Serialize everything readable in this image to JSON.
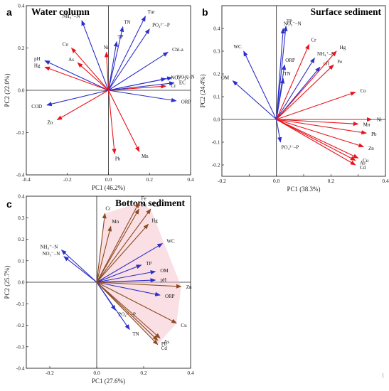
{
  "figure": {
    "stray_mark": "|"
  },
  "colors": {
    "red": "#e8141c",
    "blue": "#2b2fc9",
    "brown": "#8b4a1e",
    "axis": "#222222",
    "hull": "#f4b7c6"
  },
  "chart_data": [
    {
      "type": "biplot",
      "panel_label": "a",
      "title": "Water column",
      "xlabel": "PC1 (46.2%)",
      "ylabel": "PC2 (22.0%)",
      "xlim": [
        -0.4,
        0.4
      ],
      "ylim": [
        -0.4,
        0.4
      ],
      "xticks": [
        -0.4,
        -0.2,
        0.0,
        0.2,
        0.4
      ],
      "yticks": [
        -0.4,
        -0.2,
        0.0,
        0.2,
        0.4
      ],
      "xtick_labels": [
        "-0.4",
        "-0.2",
        "0.0",
        "0.2",
        "0.4"
      ],
      "ytick_labels": [
        "-0.4",
        "-0.2",
        "0.0",
        "0.2",
        "0.4"
      ],
      "vectors": [
        {
          "label": "NH₄⁺–N",
          "x": -0.13,
          "y": 0.33,
          "color": "blue"
        },
        {
          "label": "TN",
          "x": 0.07,
          "y": 0.3,
          "color": "blue"
        },
        {
          "label": "Tur",
          "x": 0.18,
          "y": 0.35,
          "color": "blue"
        },
        {
          "label": "PO₄³⁻–P",
          "x": 0.2,
          "y": 0.29,
          "color": "blue"
        },
        {
          "label": "TP",
          "x": 0.04,
          "y": 0.23,
          "color": "blue"
        },
        {
          "label": "Chl-a",
          "x": 0.29,
          "y": 0.18,
          "color": "blue"
        },
        {
          "label": "NO₃⁻–N",
          "x": 0.28,
          "y": 0.055,
          "color": "blue"
        },
        {
          "label": "NO₂⁻–N",
          "x": 0.31,
          "y": 0.06,
          "color": "blue"
        },
        {
          "label": "EC",
          "x": 0.32,
          "y": 0.035,
          "color": "blue"
        },
        {
          "label": "ORP",
          "x": 0.33,
          "y": -0.05,
          "color": "blue"
        },
        {
          "label": "COD",
          "x": -0.3,
          "y": -0.07,
          "color": "blue"
        },
        {
          "label": "pH",
          "x": -0.31,
          "y": 0.14,
          "color": "blue"
        },
        {
          "label": "Hg",
          "x": -0.31,
          "y": 0.11,
          "color": "red"
        },
        {
          "label": "Cu",
          "x": -0.18,
          "y": 0.2,
          "color": "red"
        },
        {
          "label": "As",
          "x": -0.15,
          "y": 0.13,
          "color": "red"
        },
        {
          "label": "Ni",
          "x": -0.01,
          "y": 0.18,
          "color": "red"
        },
        {
          "label": "Cr",
          "x": 0.28,
          "y": 0.02,
          "color": "red"
        },
        {
          "label": "Zn",
          "x": -0.25,
          "y": -0.14,
          "color": "red"
        },
        {
          "label": "Pb",
          "x": 0.03,
          "y": -0.3,
          "color": "red"
        },
        {
          "label": "Mn",
          "x": 0.15,
          "y": -0.29,
          "color": "red"
        }
      ]
    },
    {
      "type": "biplot",
      "panel_label": "b",
      "title": "Surface sediment",
      "xlabel": "PC1 (38.3%)",
      "ylabel": "PC2 (24.4%)",
      "xlim": [
        -0.2,
        0.4
      ],
      "ylim": [
        -0.25,
        0.5
      ],
      "xticks": [
        -0.2,
        -0.1,
        0.0,
        0.1,
        0.2,
        0.3,
        0.4
      ],
      "yticks": [
        -0.2,
        -0.1,
        0.0,
        0.1,
        0.2,
        0.3,
        0.4
      ],
      "xtick_labels": [
        "-0.2",
        "",
        "0.0",
        "",
        "0.2",
        "",
        "0.4"
      ],
      "ytick_labels": [
        "-0.2",
        "-0.1",
        "0.0",
        "0.1",
        "0.2",
        "0.3",
        "0.4"
      ],
      "vectors": [
        {
          "label": "NO₃⁻–N",
          "x": 0.025,
          "y": 0.4,
          "color": "blue"
        },
        {
          "label": "TP",
          "x": 0.035,
          "y": 0.41,
          "color": "blue"
        },
        {
          "label": "WC",
          "x": -0.12,
          "y": 0.3,
          "color": "blue"
        },
        {
          "label": "OM",
          "x": -0.16,
          "y": 0.17,
          "color": "blue"
        },
        {
          "label": "ORP",
          "x": 0.03,
          "y": 0.24,
          "color": "blue"
        },
        {
          "label": "TN",
          "x": 0.025,
          "y": 0.18,
          "color": "blue"
        },
        {
          "label": "pH",
          "x": 0.16,
          "y": 0.23,
          "color": "blue"
        },
        {
          "label": "NH₄⁺–N",
          "x": 0.14,
          "y": 0.27,
          "color": "blue"
        },
        {
          "label": "PO₄³⁻–P",
          "x": 0.015,
          "y": -0.1,
          "color": "blue"
        },
        {
          "label": "Cr",
          "x": 0.12,
          "y": 0.33,
          "color": "red"
        },
        {
          "label": "Hg",
          "x": 0.22,
          "y": 0.3,
          "color": "red"
        },
        {
          "label": "Fe",
          "x": 0.21,
          "y": 0.24,
          "color": "red"
        },
        {
          "label": "Co",
          "x": 0.29,
          "y": 0.12,
          "color": "red"
        },
        {
          "label": "Ni",
          "x": 0.35,
          "y": 0.0,
          "color": "red"
        },
        {
          "label": "Mn",
          "x": 0.3,
          "y": -0.02,
          "color": "red"
        },
        {
          "label": "Pb",
          "x": 0.33,
          "y": -0.06,
          "color": "red"
        },
        {
          "label": "Zn",
          "x": 0.32,
          "y": -0.12,
          "color": "red"
        },
        {
          "label": "Cu",
          "x": 0.3,
          "y": -0.17,
          "color": "red"
        },
        {
          "label": "As",
          "x": 0.29,
          "y": -0.18,
          "color": "red"
        },
        {
          "label": "Cd",
          "x": 0.29,
          "y": -0.2,
          "color": "red"
        }
      ]
    },
    {
      "type": "biplot",
      "panel_label": "c",
      "title": "Bottom sediment",
      "xlabel": "PC1 (27.6%)",
      "ylabel": "PC2 (25.7%)",
      "xlim": [
        -0.3,
        0.4
      ],
      "ylim": [
        -0.4,
        0.4
      ],
      "xticks": [
        -0.2,
        0.0,
        0.2,
        0.4
      ],
      "yticks": [
        -0.4,
        -0.3,
        -0.2,
        -0.1,
        0.0,
        0.1,
        0.2,
        0.3,
        0.4
      ],
      "xtick_labels": [
        "-0.2",
        "0.0",
        "0.2",
        "0.4"
      ],
      "ytick_labels": [
        "-0.4",
        "-0.3",
        "-0.2",
        "-0.1",
        "0.0",
        "0.1",
        "0.2",
        "0.3",
        "0.4"
      ],
      "vectors": [
        {
          "label": "Fe",
          "x": 0.18,
          "y": 0.37,
          "color": "brown"
        },
        {
          "label": "Ni",
          "x": 0.18,
          "y": 0.34,
          "color": "brown"
        },
        {
          "label": "Co",
          "x": 0.23,
          "y": 0.34,
          "color": "brown"
        },
        {
          "label": "Hg",
          "x": 0.22,
          "y": 0.27,
          "color": "brown"
        },
        {
          "label": "Cr",
          "x": 0.035,
          "y": 0.32,
          "color": "brown"
        },
        {
          "label": "Mn",
          "x": 0.06,
          "y": 0.26,
          "color": "brown"
        },
        {
          "label": "WC",
          "x": 0.28,
          "y": 0.18,
          "color": "blue"
        },
        {
          "label": "TP",
          "x": 0.19,
          "y": 0.08,
          "color": "blue"
        },
        {
          "label": "OM",
          "x": 0.25,
          "y": 0.05,
          "color": "blue"
        },
        {
          "label": "pH",
          "x": 0.25,
          "y": 0.01,
          "color": "blue"
        },
        {
          "label": "ORP",
          "x": 0.27,
          "y": -0.06,
          "color": "blue"
        },
        {
          "label": "NH₄⁺–N",
          "x": -0.15,
          "y": 0.15,
          "color": "blue"
        },
        {
          "label": "NO₃⁻–N",
          "x": -0.14,
          "y": 0.12,
          "color": "blue"
        },
        {
          "label": "PO₄³⁻–P",
          "x": 0.08,
          "y": -0.13,
          "color": "blue"
        },
        {
          "label": "TN",
          "x": 0.14,
          "y": -0.22,
          "color": "blue"
        },
        {
          "label": "Zn",
          "x": 0.36,
          "y": -0.02,
          "color": "brown"
        },
        {
          "label": "Cu",
          "x": 0.34,
          "y": -0.19,
          "color": "brown"
        },
        {
          "label": "As",
          "x": 0.27,
          "y": -0.26,
          "color": "brown"
        },
        {
          "label": "Pb",
          "x": 0.26,
          "y": -0.27,
          "color": "brown"
        },
        {
          "label": "Cd",
          "x": 0.26,
          "y": -0.29,
          "color": "brown"
        }
      ]
    }
  ]
}
